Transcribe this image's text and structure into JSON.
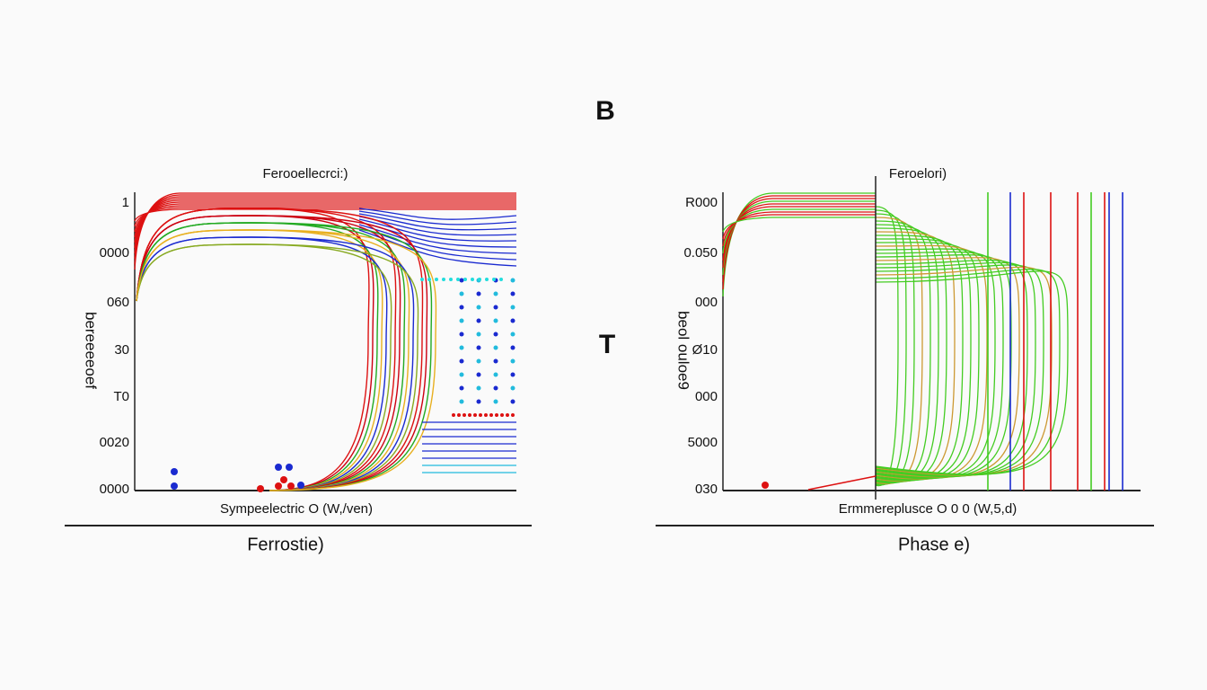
{
  "figure_letter": "B",
  "middle_mark": "T",
  "panels": [
    {
      "title": "Ferooellecrci:)",
      "y_label": "bereeeeoef",
      "y_tick_labels": [
        "1",
        "0000",
        "060",
        "30",
        "T0",
        "0020",
        "0000"
      ],
      "x_label": "Sympeelectric O (W,/ven)",
      "caption": "Ferrostie)"
    },
    {
      "title": "Feroelori)",
      "y_label": "beol ouloe9",
      "y_tick_labels": [
        "R000",
        "0.050",
        "000",
        "Ø10",
        "000",
        "5000",
        "030"
      ],
      "x_label": "Ermmereplusce O 0 0 (W,5,d)",
      "caption": "Phase e)"
    }
  ]
}
